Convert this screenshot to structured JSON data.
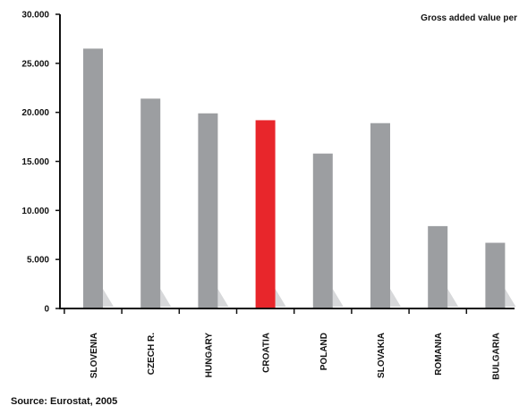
{
  "chart_data": {
    "type": "bar",
    "title": "Gross added value per",
    "categories": [
      "SLOVENIA",
      "CZECH R.",
      "HUNGARY",
      "CROATIA",
      "POLAND",
      "SLOVAKIA",
      "ROMANIA",
      "BULGARIA"
    ],
    "values": [
      26500,
      21400,
      19900,
      19200,
      15800,
      18900,
      8400,
      6700
    ],
    "highlight_category": "CROATIA",
    "ylim": [
      0,
      30000
    ],
    "yticks": [
      0,
      5000,
      10000,
      15000,
      20000,
      25000,
      30000
    ],
    "ytick_labels": [
      "0",
      "5.000",
      "10.000",
      "15.000",
      "20.000",
      "25.000",
      "30.000"
    ],
    "xlabel": "",
    "ylabel": "",
    "grid": false,
    "colors": {
      "bar": "#9c9ea1",
      "highlight": "#e8262b",
      "shadow": "#d7d8da",
      "axis": "#111111"
    }
  },
  "source": "Source: Eurostat, 2005"
}
